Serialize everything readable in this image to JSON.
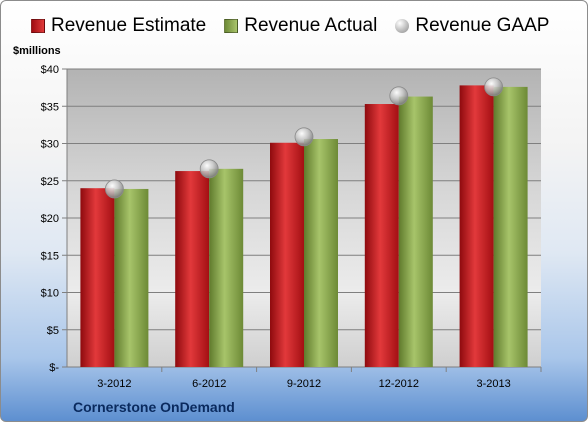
{
  "chart_data": {
    "type": "bar",
    "title": "",
    "ylabel": "$millions",
    "xlabel": "",
    "company": "Cornerstone OnDemand",
    "categories": [
      "3-2012",
      "6-2012",
      "9-2012",
      "12-2012",
      "3-2013"
    ],
    "ylim": [
      0,
      40
    ],
    "yticks": [
      0,
      5,
      10,
      15,
      20,
      25,
      30,
      35,
      40
    ],
    "ytick_labels": [
      "$-",
      "$5",
      "$10",
      "$15",
      "$20",
      "$25",
      "$30",
      "$35",
      "$40"
    ],
    "grid": true,
    "legend_position": "top",
    "series": [
      {
        "name": "Revenue Estimate",
        "type": "bar",
        "color": "#c0161b",
        "values": [
          24.0,
          26.3,
          30.1,
          35.3,
          37.8
        ]
      },
      {
        "name": "Revenue Actual",
        "type": "bar",
        "color": "#8aab4f",
        "values": [
          23.9,
          26.6,
          30.6,
          36.3,
          37.6
        ]
      },
      {
        "name": "Revenue GAAP",
        "type": "marker",
        "color": "#b5b5b5",
        "values": [
          23.9,
          26.6,
          30.9,
          36.4,
          37.6
        ]
      }
    ]
  }
}
